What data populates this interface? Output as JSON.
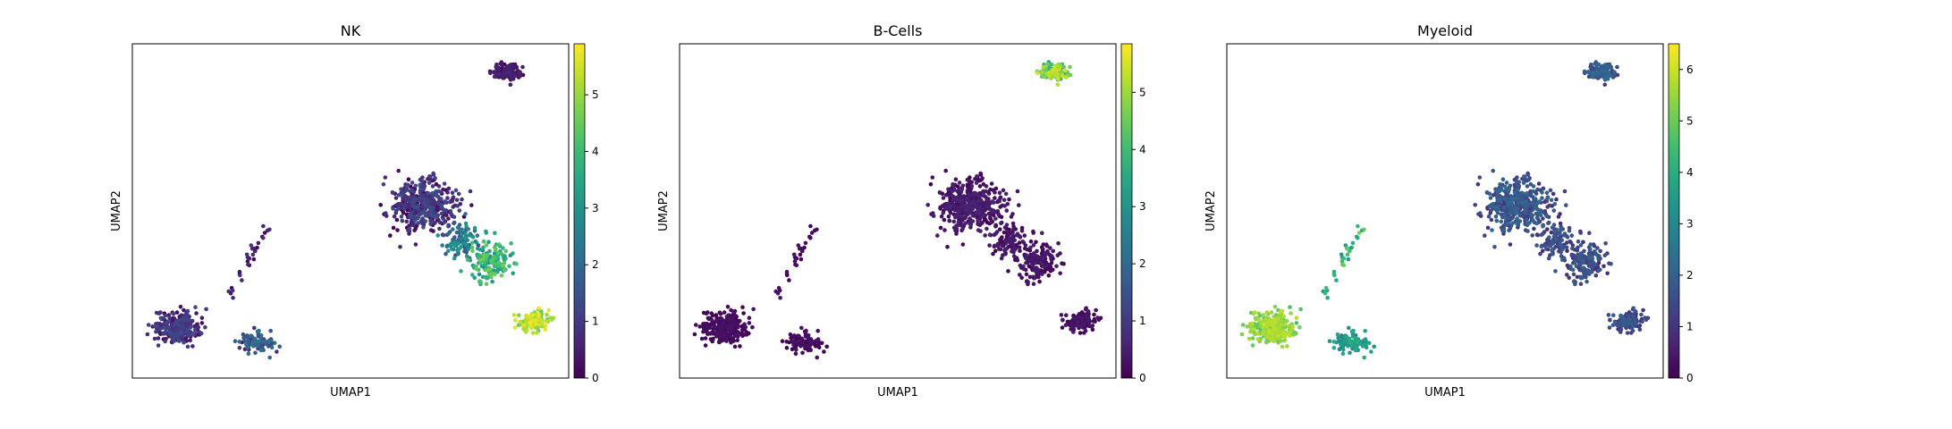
{
  "chart_data": [
    {
      "type": "scatter",
      "title": "NK",
      "xlabel": "UMAP1",
      "ylabel": "UMAP2",
      "colorbar": {
        "colormap": "viridis",
        "min": 0,
        "max": 5.9,
        "ticks": [
          0,
          1,
          2,
          3,
          4,
          5
        ]
      },
      "clusters": [
        {
          "cx": 0.5,
          "cy": 0.5,
          "sx": 0.35,
          "sy": 0.22,
          "n": 280,
          "value_range": [
            0.0,
            1.3
          ]
        },
        {
          "cx": 1.9,
          "cy": 0.25,
          "sx": 0.3,
          "sy": 0.15,
          "n": 90,
          "value_range": [
            0.4,
            2.3
          ]
        },
        {
          "cx": 4.9,
          "cy": 2.45,
          "sx": 0.5,
          "sy": 0.35,
          "n": 420,
          "value_range": [
            0.0,
            1.4
          ]
        },
        {
          "cx": 6.1,
          "cy": 1.55,
          "sx": 0.35,
          "sy": 0.28,
          "n": 160,
          "value_range": [
            2.8,
            4.6
          ]
        },
        {
          "cx": 6.85,
          "cy": 0.6,
          "sx": 0.25,
          "sy": 0.15,
          "n": 110,
          "value_range": [
            4.5,
            5.8
          ]
        },
        {
          "cx": 5.6,
          "cy": 1.9,
          "sx": 0.35,
          "sy": 0.25,
          "n": 100,
          "value_range": [
            1.2,
            3.2
          ]
        },
        {
          "cx": 6.4,
          "cy": 4.55,
          "sx": 0.22,
          "sy": 0.12,
          "n": 150,
          "value_range": [
            0.0,
            0.6
          ]
        }
      ],
      "arm": {
        "from": [
          1.4,
          1.0
        ],
        "to": [
          2.1,
          2.1
        ],
        "n": 30,
        "value_range": [
          0.0,
          1.0
        ]
      }
    },
    {
      "type": "scatter",
      "title": "B-Cells",
      "xlabel": "UMAP1",
      "ylabel": "UMAP2",
      "colorbar": {
        "colormap": "viridis",
        "min": 0,
        "max": 5.85,
        "ticks": [
          0,
          1,
          2,
          3,
          4,
          5
        ]
      },
      "clusters": [
        {
          "cx": 0.5,
          "cy": 0.5,
          "sx": 0.35,
          "sy": 0.22,
          "n": 280,
          "value_range": [
            0.0,
            0.3
          ]
        },
        {
          "cx": 1.9,
          "cy": 0.25,
          "sx": 0.3,
          "sy": 0.15,
          "n": 90,
          "value_range": [
            0.0,
            0.3
          ]
        },
        {
          "cx": 4.9,
          "cy": 2.45,
          "sx": 0.5,
          "sy": 0.35,
          "n": 420,
          "value_range": [
            0.0,
            0.6
          ]
        },
        {
          "cx": 6.1,
          "cy": 1.55,
          "sx": 0.35,
          "sy": 0.28,
          "n": 160,
          "value_range": [
            0.0,
            0.5
          ]
        },
        {
          "cx": 6.85,
          "cy": 0.6,
          "sx": 0.25,
          "sy": 0.15,
          "n": 110,
          "value_range": [
            0.0,
            0.4
          ]
        },
        {
          "cx": 5.6,
          "cy": 1.9,
          "sx": 0.35,
          "sy": 0.25,
          "n": 100,
          "value_range": [
            0.0,
            0.5
          ]
        },
        {
          "cx": 6.4,
          "cy": 4.55,
          "sx": 0.22,
          "sy": 0.12,
          "n": 150,
          "value_range": [
            2.8,
            5.5
          ]
        }
      ],
      "arm": {
        "from": [
          1.4,
          1.0
        ],
        "to": [
          2.1,
          2.1
        ],
        "n": 30,
        "value_range": [
          0.0,
          0.3
        ]
      }
    },
    {
      "type": "scatter",
      "title": "Myeloid",
      "xlabel": "UMAP1",
      "ylabel": "UMAP2",
      "colorbar": {
        "colormap": "viridis",
        "min": 0,
        "max": 6.5,
        "ticks": [
          0,
          1,
          2,
          3,
          4,
          5,
          6
        ]
      },
      "clusters": [
        {
          "cx": 0.5,
          "cy": 0.5,
          "sx": 0.35,
          "sy": 0.22,
          "n": 280,
          "value_range": [
            4.6,
            5.9
          ]
        },
        {
          "cx": 1.9,
          "cy": 0.25,
          "sx": 0.3,
          "sy": 0.15,
          "n": 90,
          "value_range": [
            2.8,
            4.0
          ]
        },
        {
          "cx": 4.9,
          "cy": 2.45,
          "sx": 0.5,
          "sy": 0.35,
          "n": 420,
          "value_range": [
            0.8,
            2.2
          ]
        },
        {
          "cx": 6.1,
          "cy": 1.55,
          "sx": 0.35,
          "sy": 0.28,
          "n": 160,
          "value_range": [
            0.6,
            2.0
          ]
        },
        {
          "cx": 6.85,
          "cy": 0.6,
          "sx": 0.25,
          "sy": 0.15,
          "n": 110,
          "value_range": [
            0.8,
            2.0
          ]
        },
        {
          "cx": 5.6,
          "cy": 1.9,
          "sx": 0.35,
          "sy": 0.25,
          "n": 100,
          "value_range": [
            0.6,
            2.0
          ]
        },
        {
          "cx": 6.4,
          "cy": 4.55,
          "sx": 0.22,
          "sy": 0.12,
          "n": 150,
          "value_range": [
            1.0,
            2.2
          ]
        }
      ],
      "arm": {
        "from": [
          1.4,
          1.0
        ],
        "to": [
          2.1,
          2.1
        ],
        "n": 30,
        "value_range": [
          3.5,
          5.2
        ]
      }
    }
  ],
  "shared_axes": {
    "xlim": [
      -0.3,
      7.5
    ],
    "ylim": [
      -0.3,
      5.0
    ]
  },
  "colors": {
    "background": "#ffffff",
    "frame": "#000000"
  }
}
